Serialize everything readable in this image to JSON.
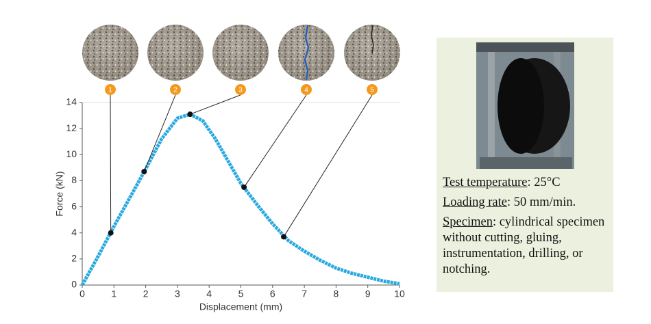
{
  "chart_data": {
    "type": "line",
    "xlabel": "Displacement (mm)",
    "ylabel": "Force (kN)",
    "x": [
      0,
      0.5,
      1,
      1.5,
      2,
      2.5,
      3,
      3.4,
      3.8,
      4.2,
      4.6,
      5,
      5.5,
      6,
      6.5,
      7,
      7.5,
      8,
      8.5,
      9,
      9.5,
      10
    ],
    "series": [
      {
        "color": "#29a9e0",
        "values": [
          0,
          2.2,
          4.5,
          6.7,
          8.9,
          11.2,
          12.8,
          13.1,
          12.6,
          11.2,
          9.5,
          7.8,
          6.2,
          4.7,
          3.4,
          2.6,
          1.9,
          1.3,
          0.9,
          0.6,
          0.3,
          0.1
        ]
      }
    ],
    "xlim": [
      0,
      10
    ],
    "ylim": [
      0,
      14
    ],
    "xticks": [
      0,
      1,
      2,
      3,
      4,
      5,
      6,
      7,
      8,
      9,
      10
    ],
    "yticks": [
      0,
      2,
      4,
      6,
      8,
      10,
      12,
      14
    ],
    "annotations": [
      {
        "label": "1",
        "x": 0.9,
        "y": 4.0
      },
      {
        "label": "2",
        "x": 1.95,
        "y": 8.7
      },
      {
        "label": "3",
        "x": 3.4,
        "y": 13.1
      },
      {
        "label": "4",
        "x": 5.1,
        "y": 7.5
      },
      {
        "label": "5",
        "x": 6.35,
        "y": 3.7
      }
    ]
  },
  "panel": {
    "items": [
      {
        "label": "Test temperature",
        "text": ": 25°C"
      },
      {
        "label": "Loading rate",
        "text": ": 50 mm/min."
      },
      {
        "label": "Specimen",
        "text": ": cylindrical specimen without cutting, gluing, instrumentation, drilling, or notching."
      }
    ]
  }
}
